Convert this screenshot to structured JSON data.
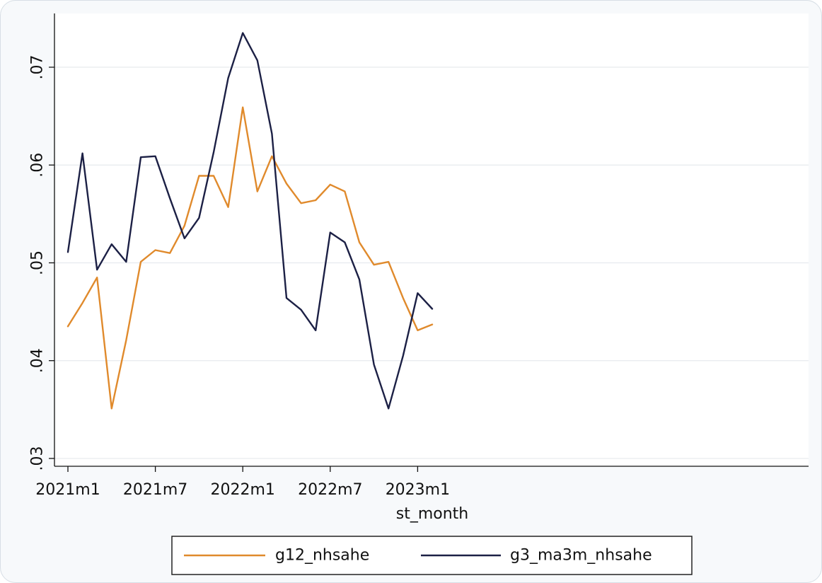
{
  "chart_data": {
    "type": "line",
    "title": "",
    "xlabel": "st_month",
    "ylabel": "",
    "x": [
      "2021m1",
      "2021m2",
      "2021m3",
      "2021m4",
      "2021m5",
      "2021m6",
      "2021m7",
      "2021m8",
      "2021m9",
      "2021m10",
      "2021m11",
      "2021m12",
      "2022m1",
      "2022m2",
      "2022m3",
      "2022m4",
      "2022m5",
      "2022m6",
      "2022m7",
      "2022m8",
      "2022m9",
      "2022m10",
      "2022m11",
      "2022m12",
      "2023m1",
      "2023m2"
    ],
    "x_ticks": [
      {
        "index": 0,
        "label": "2021m1"
      },
      {
        "index": 6,
        "label": "2021m7"
      },
      {
        "index": 12,
        "label": "2022m1"
      },
      {
        "index": 18,
        "label": "2022m7"
      },
      {
        "index": 24,
        "label": "2023m1"
      }
    ],
    "y_ticks": [
      {
        "value": 0.03,
        "label": ".03"
      },
      {
        "value": 0.04,
        "label": ".04"
      },
      {
        "value": 0.05,
        "label": ".05"
      },
      {
        "value": 0.06,
        "label": ".06"
      },
      {
        "value": 0.07,
        "label": ".07"
      }
    ],
    "ylim": [
      0.0292,
      0.0755
    ],
    "grid": true,
    "legend_position": "bottom",
    "series": [
      {
        "name": "g12_nhsahe",
        "color": "#e08a2c",
        "values": [
          0.0435,
          0.0459,
          0.0485,
          0.0351,
          0.0421,
          0.0501,
          0.0513,
          0.051,
          0.0538,
          0.0589,
          0.0589,
          0.0557,
          0.0659,
          0.0573,
          0.0609,
          0.0581,
          0.0561,
          0.0564,
          0.058,
          0.0573,
          0.0521,
          0.0498,
          0.0501,
          0.0464,
          0.0431,
          0.0437
        ]
      },
      {
        "name": "g3_ma3m_nhsahe",
        "color": "#1c2045",
        "values": [
          0.0511,
          0.0612,
          0.0493,
          0.0519,
          0.0501,
          0.0608,
          0.0609,
          0.0566,
          0.0525,
          0.0546,
          0.0613,
          0.0689,
          0.0735,
          0.0707,
          0.0632,
          0.0464,
          0.0452,
          0.0431,
          0.0531,
          0.0521,
          0.0483,
          0.0396,
          0.0351,
          0.0405,
          0.0469,
          0.0453
        ]
      }
    ]
  }
}
